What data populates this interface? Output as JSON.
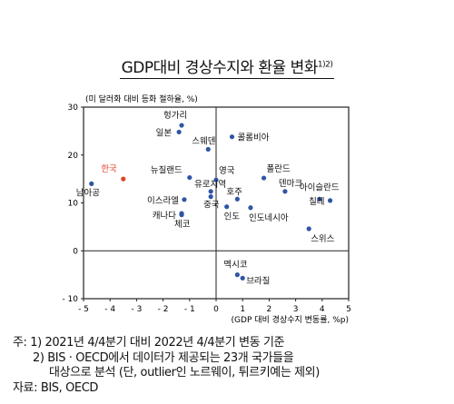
{
  "title": "GDP대비 경상수지와 환율 변화",
  "title_sup": "1)2)",
  "notes": {
    "line1": "주: 1) 2021년 4/4분기 대비 2022년 4/4분기 변동 기준",
    "line2": "2) BIS · OECD에서 데이터가 제공되는 23개 국가들을",
    "line3": "대상으로 분석 (단, outlier인 노르웨이, 튀르키예는 제외)",
    "line4": "자료: BIS, OECD"
  },
  "chart_data": {
    "type": "scatter",
    "ylabel": "(미 달러화 대비 등화 절하율, %)",
    "xlabel": "(GDP 대비 경상수지 변동률, %p)",
    "xlim": [
      -5,
      5
    ],
    "ylim": [
      -10,
      30
    ],
    "xticks": [
      "- 5",
      "- 4",
      "- 3",
      "- 2",
      "- 1",
      "0",
      "1",
      "2",
      "3",
      "4",
      "5"
    ],
    "yticks": [
      "30",
      "20",
      "10",
      "0",
      "- 10"
    ],
    "colors": {
      "default": "#2f55a4",
      "highlight": "#e0442c"
    },
    "points": [
      {
        "name": "헝가리",
        "x": -1.3,
        "y": 26.2
      },
      {
        "name": "일본",
        "x": -1.4,
        "y": 24.8
      },
      {
        "name": "스웨덴",
        "x": -0.3,
        "y": 21.2
      },
      {
        "name": "콜롬비아",
        "x": 0.6,
        "y": 23.8
      },
      {
        "name": "한국",
        "x": -3.5,
        "y": 15.0,
        "highlight": true
      },
      {
        "name": "남아공",
        "x": -4.7,
        "y": 14.0
      },
      {
        "name": "뉴질랜드",
        "x": -1.0,
        "y": 15.3
      },
      {
        "name": "유로지역",
        "x": -0.2,
        "y": 12.4
      },
      {
        "name": "이스라엘",
        "x": -1.2,
        "y": 10.7
      },
      {
        "name": "중국",
        "x": -0.2,
        "y": 11.3
      },
      {
        "name": "영국",
        "x": 0.0,
        "y": 14.8
      },
      {
        "name": "캐나다",
        "x": -1.3,
        "y": 7.5
      },
      {
        "name": "체코",
        "x": -1.3,
        "y": 7.8
      },
      {
        "name": "폴란드",
        "x": 1.8,
        "y": 15.2
      },
      {
        "name": "호주",
        "x": 0.8,
        "y": 10.8
      },
      {
        "name": "인도",
        "x": 0.4,
        "y": 9.2
      },
      {
        "name": "덴마크",
        "x": 2.6,
        "y": 12.4
      },
      {
        "name": "인도네시아",
        "x": 1.3,
        "y": 9.0
      },
      {
        "name": "아이슬란드",
        "x": 3.9,
        "y": 10.8
      },
      {
        "name": "칠레",
        "x": 4.3,
        "y": 10.5
      },
      {
        "name": "스위스",
        "x": 3.5,
        "y": 4.6
      },
      {
        "name": "멕시코",
        "x": 0.8,
        "y": -5.0
      },
      {
        "name": "브라질",
        "x": 1.0,
        "y": -5.7
      }
    ]
  }
}
